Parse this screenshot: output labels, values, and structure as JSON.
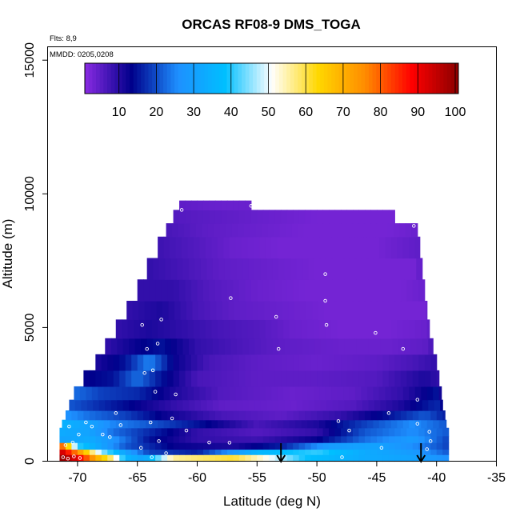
{
  "chart_data": {
    "type": "heatmap",
    "title": "ORCAS RF08-9 DMS_TOGA",
    "xlabel": "Latitude (deg N)",
    "ylabel": "Altitude (m)",
    "xlim": [
      -72.5,
      -35
    ],
    "ylim": [
      0,
      15500
    ],
    "x_ticks": [
      -70,
      -65,
      -60,
      -55,
      -50,
      -45,
      -40,
      -35
    ],
    "y_ticks": [
      0,
      5000,
      10000,
      15000
    ],
    "annotations": {
      "flights": "Flts: 8,9",
      "dates": "MMDD: 0205,0208"
    },
    "colorbar": {
      "min": 0,
      "max": 100,
      "ticks": [
        10,
        20,
        30,
        40,
        50,
        60,
        70,
        80,
        90,
        100
      ],
      "colors": [
        "#8a2be2",
        "#00008b",
        "#1e90ff",
        "#00bfff",
        "#ffffff",
        "#ffd700",
        "#ff8c00",
        "#ff0000",
        "#8b0000"
      ]
    },
    "profile_markers_latitude": [
      -53,
      -41.3
    ],
    "curtain_bands": [
      {
        "y0": 0,
        "y1": 250,
        "x0": -71.5,
        "x1": -39,
        "stops": [
          [
            -71.5,
            100
          ],
          [
            -70,
            90
          ],
          [
            -68.5,
            70
          ],
          [
            -67,
            55
          ],
          [
            -66,
            35
          ],
          [
            -64.5,
            30
          ],
          [
            -62,
            55
          ],
          [
            -57,
            60
          ],
          [
            -54,
            50
          ],
          [
            -51,
            38
          ],
          [
            -46,
            32
          ],
          [
            -42,
            30
          ],
          [
            -39,
            25
          ]
        ]
      },
      {
        "y0": 250,
        "y1": 450,
        "x0": -71.5,
        "x1": -39,
        "stops": [
          [
            -71.5,
            95
          ],
          [
            -70,
            75
          ],
          [
            -68,
            45
          ],
          [
            -66,
            30
          ],
          [
            -64,
            18
          ],
          [
            -60,
            15
          ],
          [
            -55,
            35
          ],
          [
            -50,
            40
          ],
          [
            -46,
            32
          ],
          [
            -42,
            28
          ],
          [
            -39,
            20
          ]
        ]
      },
      {
        "y0": 450,
        "y1": 700,
        "x0": -71.5,
        "x1": -39,
        "stops": [
          [
            -71.5,
            85
          ],
          [
            -70,
            40
          ],
          [
            -68,
            30
          ],
          [
            -66,
            20
          ],
          [
            -62,
            12
          ],
          [
            -57,
            10
          ],
          [
            -53,
            15
          ],
          [
            -49,
            28
          ],
          [
            -45,
            30
          ],
          [
            -42,
            25
          ],
          [
            -39,
            18
          ]
        ]
      },
      {
        "y0": 700,
        "y1": 950,
        "x0": -71.5,
        "x1": -39,
        "stops": [
          [
            -71.5,
            30
          ],
          [
            -69,
            32
          ],
          [
            -67,
            26
          ],
          [
            -64,
            14
          ],
          [
            -60,
            8
          ],
          [
            -55,
            7
          ],
          [
            -50,
            12
          ],
          [
            -46,
            22
          ],
          [
            -42,
            28
          ],
          [
            -39,
            18
          ]
        ]
      },
      {
        "y0": 950,
        "y1": 1250,
        "x0": -71.5,
        "x1": -39,
        "stops": [
          [
            -71.5,
            32
          ],
          [
            -69,
            30
          ],
          [
            -67,
            22
          ],
          [
            -64,
            16
          ],
          [
            -60,
            8
          ],
          [
            -55,
            5
          ],
          [
            -50,
            8
          ],
          [
            -46,
            20
          ],
          [
            -42,
            25
          ],
          [
            -39,
            20
          ]
        ]
      },
      {
        "y0": 1250,
        "y1": 1550,
        "x0": -71.3,
        "x1": -39.2,
        "stops": [
          [
            -71.3,
            34
          ],
          [
            -69,
            30
          ],
          [
            -67,
            24
          ],
          [
            -64,
            20
          ],
          [
            -60,
            14
          ],
          [
            -55,
            6
          ],
          [
            -50,
            10
          ],
          [
            -46,
            18
          ],
          [
            -42,
            25
          ],
          [
            -39.2,
            20
          ]
        ]
      },
      {
        "y0": 1550,
        "y1": 1900,
        "x0": -71,
        "x1": -39.3,
        "stops": [
          [
            -71,
            26
          ],
          [
            -69,
            22
          ],
          [
            -66,
            18
          ],
          [
            -63,
            12
          ],
          [
            -58,
            6
          ],
          [
            -53,
            4
          ],
          [
            -48,
            8
          ],
          [
            -44,
            14
          ],
          [
            -41,
            20
          ],
          [
            -39.3,
            15
          ]
        ]
      },
      {
        "y0": 1900,
        "y1": 2300,
        "x0": -70.7,
        "x1": -39.5,
        "stops": [
          [
            -70.7,
            20
          ],
          [
            -68,
            16
          ],
          [
            -65,
            12
          ],
          [
            -62,
            8
          ],
          [
            -58,
            4
          ],
          [
            -52,
            3
          ],
          [
            -47,
            5
          ],
          [
            -43,
            10
          ],
          [
            -40,
            16
          ],
          [
            -39.5,
            12
          ]
        ]
      },
      {
        "y0": 2300,
        "y1": 2800,
        "x0": -70.3,
        "x1": -39.6,
        "stops": [
          [
            -70.3,
            22
          ],
          [
            -68,
            18
          ],
          [
            -65,
            16
          ],
          [
            -62,
            10
          ],
          [
            -58,
            5
          ],
          [
            -52,
            3
          ],
          [
            -47,
            4
          ],
          [
            -43,
            8
          ],
          [
            -40,
            14
          ],
          [
            -39.6,
            10
          ]
        ]
      },
      {
        "y0": 2800,
        "y1": 3400,
        "x0": -69.5,
        "x1": -39.8,
        "stops": [
          [
            -69.5,
            12
          ],
          [
            -67,
            14
          ],
          [
            -65,
            22
          ],
          [
            -63,
            14
          ],
          [
            -60,
            6
          ],
          [
            -55,
            4
          ],
          [
            -50,
            4
          ],
          [
            -45,
            5
          ],
          [
            -41,
            10
          ],
          [
            -39.8,
            8
          ]
        ]
      },
      {
        "y0": 3400,
        "y1": 4000,
        "x0": -68.5,
        "x1": -40,
        "stops": [
          [
            -68.5,
            10
          ],
          [
            -66,
            14
          ],
          [
            -64,
            24
          ],
          [
            -62,
            12
          ],
          [
            -59,
            6
          ],
          [
            -55,
            4
          ],
          [
            -50,
            3
          ],
          [
            -45,
            4
          ],
          [
            -42,
            6
          ],
          [
            -40,
            8
          ]
        ]
      },
      {
        "y0": 4000,
        "y1": 4600,
        "x0": -67.7,
        "x1": -40.3,
        "stops": [
          [
            -67.7,
            8
          ],
          [
            -65,
            12
          ],
          [
            -63,
            14
          ],
          [
            -60,
            8
          ],
          [
            -57,
            6
          ],
          [
            -53,
            4
          ],
          [
            -48,
            3
          ],
          [
            -44,
            3
          ],
          [
            -41,
            4
          ],
          [
            -40.3,
            6
          ]
        ]
      },
      {
        "y0": 4600,
        "y1": 5300,
        "x0": -66.8,
        "x1": -40.6,
        "stops": [
          [
            -66.8,
            8
          ],
          [
            -64,
            10
          ],
          [
            -61,
            8
          ],
          [
            -58,
            6
          ],
          [
            -55,
            5
          ],
          [
            -52,
            3
          ],
          [
            -48,
            2
          ],
          [
            -44,
            2
          ],
          [
            -41,
            3
          ],
          [
            -40.6,
            4
          ]
        ]
      },
      {
        "y0": 5300,
        "y1": 6000,
        "x0": -65.9,
        "x1": -40.8,
        "stops": [
          [
            -65.9,
            8
          ],
          [
            -63,
            10
          ],
          [
            -60,
            6
          ],
          [
            -57,
            4
          ],
          [
            -53,
            3
          ],
          [
            -49,
            2
          ],
          [
            -45,
            2
          ],
          [
            -41,
            2
          ],
          [
            -40.8,
            3
          ]
        ]
      },
      {
        "y0": 6000,
        "y1": 6800,
        "x0": -65,
        "x1": -41,
        "stops": [
          [
            -65,
            8
          ],
          [
            -62,
            8
          ],
          [
            -59,
            5
          ],
          [
            -55,
            3
          ],
          [
            -51,
            2
          ],
          [
            -47,
            2
          ],
          [
            -43,
            2
          ],
          [
            -41,
            3
          ]
        ]
      },
      {
        "y0": 6800,
        "y1": 7600,
        "x0": -64.2,
        "x1": -41.2,
        "stops": [
          [
            -64.2,
            8
          ],
          [
            -61,
            6
          ],
          [
            -58,
            4
          ],
          [
            -54,
            3
          ],
          [
            -50,
            2
          ],
          [
            -46,
            2
          ],
          [
            -42,
            2
          ],
          [
            -41.2,
            4
          ]
        ]
      },
      {
        "y0": 7600,
        "y1": 8400,
        "x0": -63.3,
        "x1": -41.4,
        "stops": [
          [
            -63.3,
            7
          ],
          [
            -60,
            5
          ],
          [
            -57,
            3
          ],
          [
            -53,
            2
          ],
          [
            -49,
            2
          ],
          [
            -45,
            2
          ],
          [
            -41.4,
            4
          ]
        ]
      },
      {
        "y0": 8400,
        "y1": 8900,
        "x0": -62.6,
        "x1": -41.6,
        "stops": [
          [
            -62.6,
            6
          ],
          [
            -59,
            4
          ],
          [
            -55,
            3
          ],
          [
            -51,
            2
          ],
          [
            -47,
            2
          ],
          [
            -44,
            2
          ],
          [
            -41.6,
            3
          ]
        ]
      },
      {
        "y0": 8900,
        "y1": 9400,
        "x0": -62,
        "x1": -43.5,
        "stops": [
          [
            -62,
            5
          ],
          [
            -58,
            4
          ],
          [
            -54,
            3
          ],
          [
            -50,
            2
          ],
          [
            -46,
            2
          ],
          [
            -43.5,
            2
          ]
        ]
      },
      {
        "y0": 9400,
        "y1": 9750,
        "x0": -61.5,
        "x1": -55.5,
        "stops": [
          [
            -61.5,
            4
          ],
          [
            -58,
            3
          ],
          [
            -55.5,
            3
          ]
        ]
      }
    ],
    "sample_points": [
      [
        -71.2,
        150
      ],
      [
        -70.8,
        100
      ],
      [
        -70.3,
        180
      ],
      [
        -69.8,
        120
      ],
      [
        -71,
        600
      ],
      [
        -70.4,
        700
      ],
      [
        -69.9,
        1000
      ],
      [
        -70.7,
        1300
      ],
      [
        -69.3,
        1450
      ],
      [
        -68.8,
        1300
      ],
      [
        -67.9,
        1000
      ],
      [
        -67.3,
        900
      ],
      [
        -66.4,
        1350
      ],
      [
        -64.7,
        500
      ],
      [
        -63.9,
        1450
      ],
      [
        -63.7,
        3400
      ],
      [
        -63.3,
        4400
      ],
      [
        -64.4,
        3300
      ],
      [
        -64.2,
        4200
      ],
      [
        -63.5,
        2600
      ],
      [
        -64.6,
        5100
      ],
      [
        -63,
        5300
      ],
      [
        -61.3,
        9400
      ],
      [
        -57.2,
        6100
      ],
      [
        -55.5,
        9550
      ],
      [
        -57.3,
        690
      ],
      [
        -60.9,
        1150
      ],
      [
        -53.4,
        5400
      ],
      [
        -53.2,
        4200
      ],
      [
        -49.3,
        7000
      ],
      [
        -49.3,
        6000
      ],
      [
        -49.2,
        5100
      ],
      [
        -48.2,
        1500
      ],
      [
        -47.3,
        1150
      ],
      [
        -45.1,
        4800
      ],
      [
        -42.8,
        4200
      ],
      [
        -44,
        1800
      ],
      [
        -41.9,
        8800
      ],
      [
        -41.6,
        2300
      ],
      [
        -41.6,
        1400
      ],
      [
        -40.6,
        1100
      ],
      [
        -40.5,
        750
      ],
      [
        -40.8,
        450
      ],
      [
        -44.6,
        500
      ],
      [
        -47.9,
        150
      ],
      [
        -59,
        700
      ],
      [
        -63.8,
        150
      ],
      [
        -62.6,
        300
      ],
      [
        -63.2,
        750
      ],
      [
        -66.8,
        1800
      ],
      [
        -62.1,
        1600
      ],
      [
        -61.8,
        2500
      ]
    ]
  }
}
